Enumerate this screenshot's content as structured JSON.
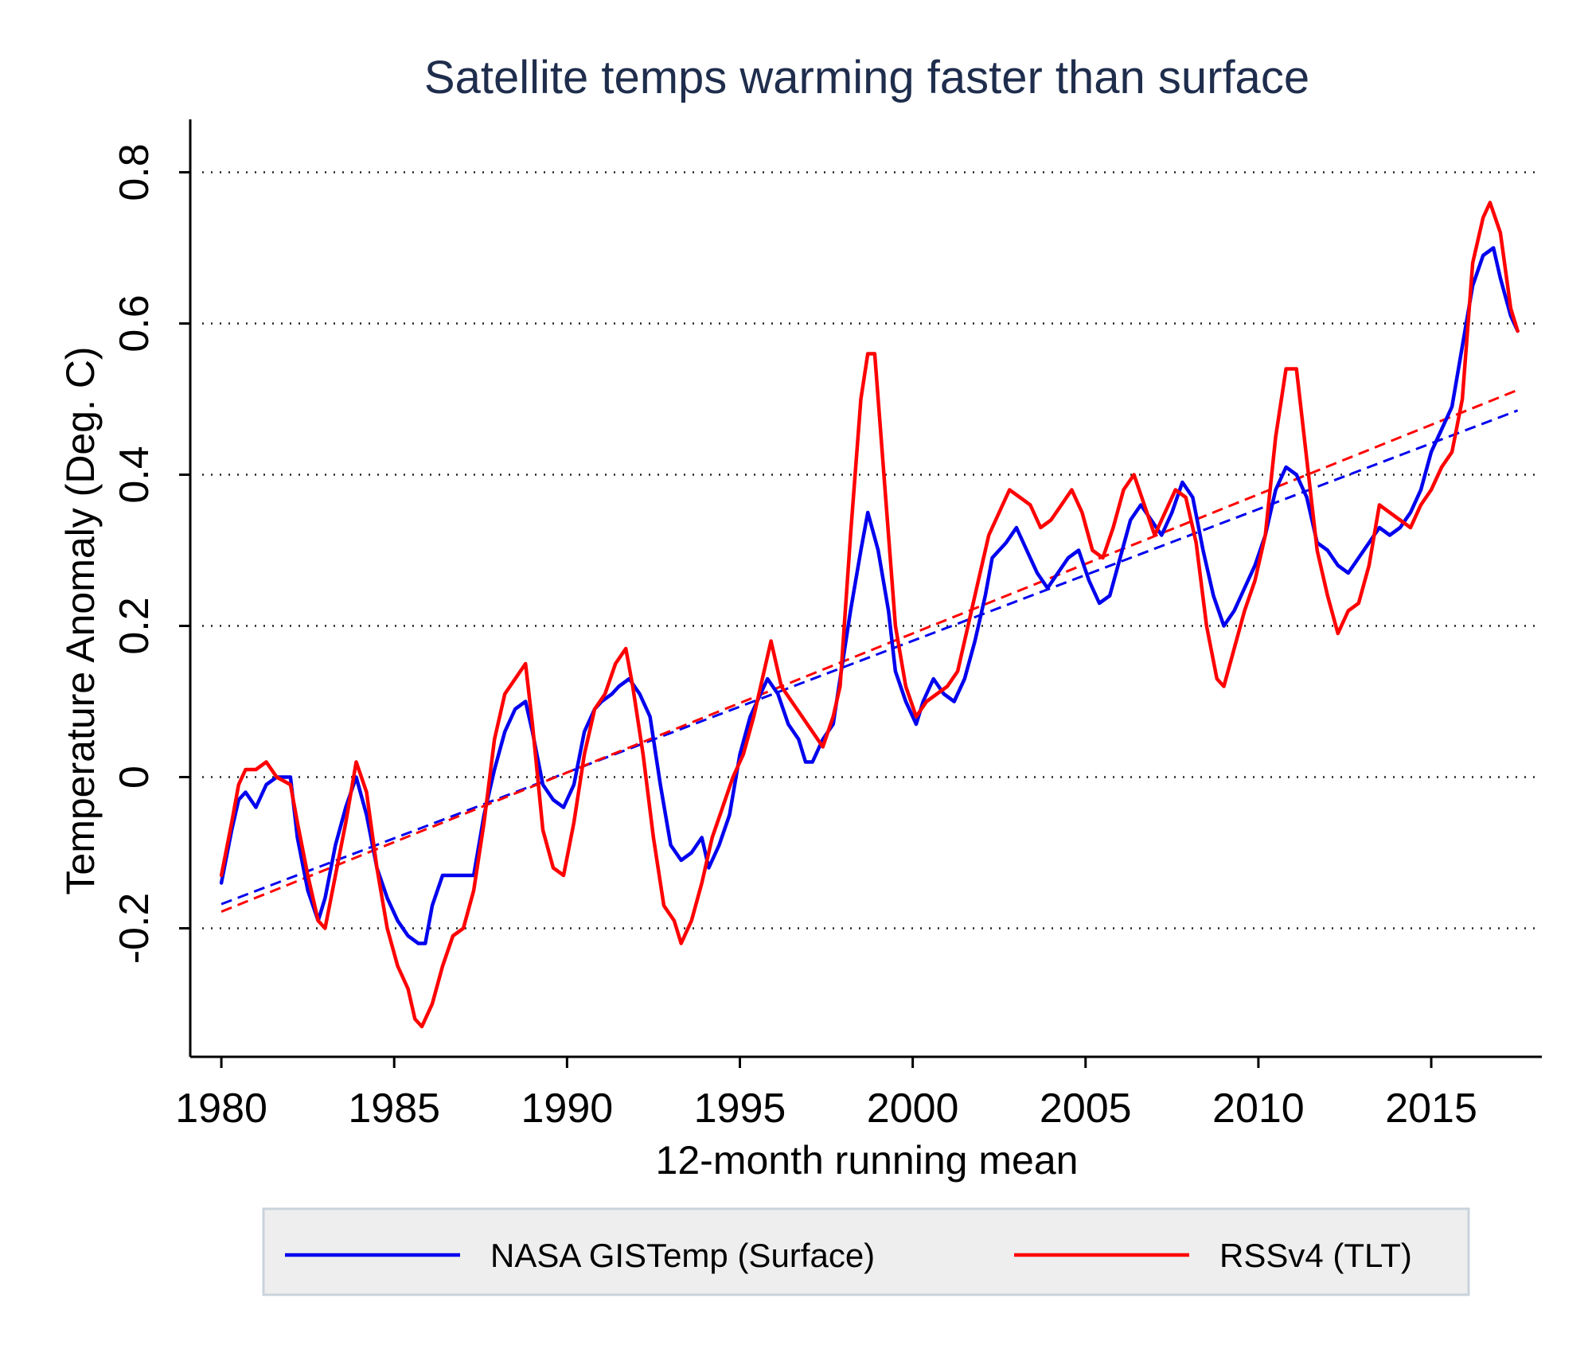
{
  "chart_data": {
    "type": "line",
    "title": "Satellite temps warming faster than surface",
    "xlabel": "12-month running mean",
    "ylabel": "Temperature Anomaly (Deg. C)",
    "xlim": [
      1979.1,
      2018.2
    ],
    "ylim": [
      -0.37,
      0.87
    ],
    "x_ticks": [
      1980,
      1985,
      1990,
      1995,
      2000,
      2005,
      2010,
      2015
    ],
    "x_tick_labels": [
      "1980",
      "1985",
      "1990",
      "1995",
      "2000",
      "2005",
      "2010",
      "2015"
    ],
    "y_ticks": [
      -0.2,
      0,
      0.2,
      0.4,
      0.6,
      0.8
    ],
    "y_tick_labels": [
      "-0.2",
      "0",
      "0.2",
      "0.4",
      "0.6",
      "0.8"
    ],
    "grid": "horizontal dotted",
    "legend_position": "bottom",
    "series": [
      {
        "name": "NASA GISTemp (Surface)",
        "color": "#0000ee",
        "points": [
          [
            1980.0,
            -0.14
          ],
          [
            1980.3,
            -0.07
          ],
          [
            1980.5,
            -0.03
          ],
          [
            1980.7,
            -0.02
          ],
          [
            1981.0,
            -0.04
          ],
          [
            1981.3,
            -0.01
          ],
          [
            1981.6,
            0.0
          ],
          [
            1982.0,
            0.0
          ],
          [
            1982.2,
            -0.08
          ],
          [
            1982.5,
            -0.15
          ],
          [
            1982.8,
            -0.19
          ],
          [
            1983.0,
            -0.16
          ],
          [
            1983.3,
            -0.09
          ],
          [
            1983.6,
            -0.04
          ],
          [
            1983.9,
            0.0
          ],
          [
            1984.2,
            -0.05
          ],
          [
            1984.5,
            -0.12
          ],
          [
            1984.8,
            -0.16
          ],
          [
            1985.1,
            -0.19
          ],
          [
            1985.4,
            -0.21
          ],
          [
            1985.7,
            -0.22
          ],
          [
            1985.9,
            -0.22
          ],
          [
            1986.1,
            -0.17
          ],
          [
            1986.4,
            -0.13
          ],
          [
            1986.7,
            -0.13
          ],
          [
            1987.0,
            -0.13
          ],
          [
            1987.3,
            -0.13
          ],
          [
            1987.6,
            -0.05
          ],
          [
            1987.9,
            0.01
          ],
          [
            1988.2,
            0.06
          ],
          [
            1988.5,
            0.09
          ],
          [
            1988.8,
            0.1
          ],
          [
            1989.0,
            0.06
          ],
          [
            1989.3,
            -0.01
          ],
          [
            1989.6,
            -0.03
          ],
          [
            1989.9,
            -0.04
          ],
          [
            1990.2,
            -0.01
          ],
          [
            1990.5,
            0.06
          ],
          [
            1990.8,
            0.09
          ],
          [
            1991.0,
            0.1
          ],
          [
            1991.3,
            0.11
          ],
          [
            1991.5,
            0.12
          ],
          [
            1991.8,
            0.13
          ],
          [
            1992.1,
            0.11
          ],
          [
            1992.4,
            0.08
          ],
          [
            1992.7,
            -0.01
          ],
          [
            1993.0,
            -0.09
          ],
          [
            1993.3,
            -0.11
          ],
          [
            1993.6,
            -0.1
          ],
          [
            1993.9,
            -0.08
          ],
          [
            1994.1,
            -0.12
          ],
          [
            1994.4,
            -0.09
          ],
          [
            1994.7,
            -0.05
          ],
          [
            1995.0,
            0.03
          ],
          [
            1995.3,
            0.08
          ],
          [
            1995.6,
            0.11
          ],
          [
            1995.8,
            0.13
          ],
          [
            1996.1,
            0.11
          ],
          [
            1996.4,
            0.07
          ],
          [
            1996.7,
            0.05
          ],
          [
            1996.9,
            0.02
          ],
          [
            1997.1,
            0.02
          ],
          [
            1997.4,
            0.05
          ],
          [
            1997.7,
            0.07
          ],
          [
            1997.9,
            0.13
          ],
          [
            1998.2,
            0.22
          ],
          [
            1998.5,
            0.3
          ],
          [
            1998.7,
            0.35
          ],
          [
            1999.0,
            0.3
          ],
          [
            1999.3,
            0.22
          ],
          [
            1999.5,
            0.14
          ],
          [
            1999.8,
            0.1
          ],
          [
            2000.1,
            0.07
          ],
          [
            2000.3,
            0.1
          ],
          [
            2000.6,
            0.13
          ],
          [
            2000.9,
            0.11
          ],
          [
            2001.2,
            0.1
          ],
          [
            2001.5,
            0.13
          ],
          [
            2001.8,
            0.18
          ],
          [
            2002.1,
            0.24
          ],
          [
            2002.3,
            0.29
          ],
          [
            2002.7,
            0.31
          ],
          [
            2003.0,
            0.33
          ],
          [
            2003.3,
            0.3
          ],
          [
            2003.6,
            0.27
          ],
          [
            2003.9,
            0.25
          ],
          [
            2004.2,
            0.27
          ],
          [
            2004.5,
            0.29
          ],
          [
            2004.8,
            0.3
          ],
          [
            2005.1,
            0.26
          ],
          [
            2005.4,
            0.23
          ],
          [
            2005.7,
            0.24
          ],
          [
            2006.0,
            0.29
          ],
          [
            2006.3,
            0.34
          ],
          [
            2006.6,
            0.36
          ],
          [
            2006.9,
            0.34
          ],
          [
            2007.2,
            0.32
          ],
          [
            2007.5,
            0.35
          ],
          [
            2007.8,
            0.39
          ],
          [
            2008.1,
            0.37
          ],
          [
            2008.4,
            0.3
          ],
          [
            2008.7,
            0.24
          ],
          [
            2009.0,
            0.2
          ],
          [
            2009.3,
            0.22
          ],
          [
            2009.6,
            0.25
          ],
          [
            2009.9,
            0.28
          ],
          [
            2010.2,
            0.32
          ],
          [
            2010.5,
            0.38
          ],
          [
            2010.8,
            0.41
          ],
          [
            2011.1,
            0.4
          ],
          [
            2011.4,
            0.37
          ],
          [
            2011.7,
            0.31
          ],
          [
            2012.0,
            0.3
          ],
          [
            2012.3,
            0.28
          ],
          [
            2012.6,
            0.27
          ],
          [
            2012.9,
            0.29
          ],
          [
            2013.2,
            0.31
          ],
          [
            2013.5,
            0.33
          ],
          [
            2013.8,
            0.32
          ],
          [
            2014.1,
            0.33
          ],
          [
            2014.4,
            0.35
          ],
          [
            2014.7,
            0.38
          ],
          [
            2015.0,
            0.43
          ],
          [
            2015.3,
            0.46
          ],
          [
            2015.6,
            0.49
          ],
          [
            2015.9,
            0.57
          ],
          [
            2016.2,
            0.65
          ],
          [
            2016.5,
            0.69
          ],
          [
            2016.8,
            0.7
          ],
          [
            2017.0,
            0.66
          ],
          [
            2017.3,
            0.61
          ],
          [
            2017.5,
            0.59
          ]
        ]
      },
      {
        "name": "RSSv4 (TLT)",
        "color": "#ff0000",
        "points": [
          [
            1980.0,
            -0.13
          ],
          [
            1980.3,
            -0.06
          ],
          [
            1980.5,
            -0.01
          ],
          [
            1980.7,
            0.01
          ],
          [
            1981.0,
            0.01
          ],
          [
            1981.3,
            0.02
          ],
          [
            1981.6,
            0.0
          ],
          [
            1982.0,
            -0.01
          ],
          [
            1982.2,
            -0.06
          ],
          [
            1982.5,
            -0.13
          ],
          [
            1982.8,
            -0.19
          ],
          [
            1983.0,
            -0.2
          ],
          [
            1983.3,
            -0.13
          ],
          [
            1983.6,
            -0.06
          ],
          [
            1983.9,
            0.02
          ],
          [
            1984.2,
            -0.02
          ],
          [
            1984.5,
            -0.12
          ],
          [
            1984.8,
            -0.2
          ],
          [
            1985.1,
            -0.25
          ],
          [
            1985.4,
            -0.28
          ],
          [
            1985.6,
            -0.32
          ],
          [
            1985.8,
            -0.33
          ],
          [
            1986.1,
            -0.3
          ],
          [
            1986.4,
            -0.25
          ],
          [
            1986.7,
            -0.21
          ],
          [
            1987.0,
            -0.2
          ],
          [
            1987.3,
            -0.15
          ],
          [
            1987.6,
            -0.06
          ],
          [
            1987.9,
            0.05
          ],
          [
            1988.2,
            0.11
          ],
          [
            1988.5,
            0.13
          ],
          [
            1988.8,
            0.15
          ],
          [
            1989.0,
            0.07
          ],
          [
            1989.3,
            -0.07
          ],
          [
            1989.6,
            -0.12
          ],
          [
            1989.9,
            -0.13
          ],
          [
            1990.2,
            -0.06
          ],
          [
            1990.5,
            0.03
          ],
          [
            1990.8,
            0.09
          ],
          [
            1991.1,
            0.11
          ],
          [
            1991.4,
            0.15
          ],
          [
            1991.7,
            0.17
          ],
          [
            1991.9,
            0.12
          ],
          [
            1992.2,
            0.03
          ],
          [
            1992.5,
            -0.08
          ],
          [
            1992.8,
            -0.17
          ],
          [
            1993.1,
            -0.19
          ],
          [
            1993.3,
            -0.22
          ],
          [
            1993.6,
            -0.19
          ],
          [
            1993.9,
            -0.14
          ],
          [
            1994.2,
            -0.08
          ],
          [
            1994.5,
            -0.04
          ],
          [
            1994.8,
            0.0
          ],
          [
            1995.1,
            0.03
          ],
          [
            1995.4,
            0.08
          ],
          [
            1995.7,
            0.14
          ],
          [
            1995.9,
            0.18
          ],
          [
            1996.2,
            0.12
          ],
          [
            1996.5,
            0.1
          ],
          [
            1996.8,
            0.08
          ],
          [
            1997.1,
            0.06
          ],
          [
            1997.4,
            0.04
          ],
          [
            1997.7,
            0.08
          ],
          [
            1997.9,
            0.12
          ],
          [
            1998.2,
            0.32
          ],
          [
            1998.5,
            0.5
          ],
          [
            1998.7,
            0.56
          ],
          [
            1998.9,
            0.56
          ],
          [
            1999.2,
            0.38
          ],
          [
            1999.5,
            0.2
          ],
          [
            1999.8,
            0.12
          ],
          [
            2000.1,
            0.08
          ],
          [
            2000.4,
            0.1
          ],
          [
            2000.7,
            0.11
          ],
          [
            2001.0,
            0.12
          ],
          [
            2001.3,
            0.14
          ],
          [
            2001.6,
            0.2
          ],
          [
            2001.9,
            0.26
          ],
          [
            2002.2,
            0.32
          ],
          [
            2002.5,
            0.35
          ],
          [
            2002.8,
            0.38
          ],
          [
            2003.1,
            0.37
          ],
          [
            2003.4,
            0.36
          ],
          [
            2003.7,
            0.33
          ],
          [
            2004.0,
            0.34
          ],
          [
            2004.3,
            0.36
          ],
          [
            2004.6,
            0.38
          ],
          [
            2004.9,
            0.35
          ],
          [
            2005.2,
            0.3
          ],
          [
            2005.5,
            0.29
          ],
          [
            2005.8,
            0.33
          ],
          [
            2006.1,
            0.38
          ],
          [
            2006.4,
            0.4
          ],
          [
            2006.7,
            0.36
          ],
          [
            2007.0,
            0.32
          ],
          [
            2007.3,
            0.35
          ],
          [
            2007.6,
            0.38
          ],
          [
            2007.9,
            0.37
          ],
          [
            2008.2,
            0.31
          ],
          [
            2008.5,
            0.2
          ],
          [
            2008.8,
            0.13
          ],
          [
            2009.0,
            0.12
          ],
          [
            2009.3,
            0.17
          ],
          [
            2009.6,
            0.22
          ],
          [
            2009.9,
            0.26
          ],
          [
            2010.2,
            0.32
          ],
          [
            2010.5,
            0.45
          ],
          [
            2010.8,
            0.54
          ],
          [
            2011.1,
            0.54
          ],
          [
            2011.4,
            0.42
          ],
          [
            2011.7,
            0.3
          ],
          [
            2012.0,
            0.24
          ],
          [
            2012.3,
            0.19
          ],
          [
            2012.6,
            0.22
          ],
          [
            2012.9,
            0.23
          ],
          [
            2013.2,
            0.28
          ],
          [
            2013.5,
            0.36
          ],
          [
            2013.8,
            0.35
          ],
          [
            2014.1,
            0.34
          ],
          [
            2014.4,
            0.33
          ],
          [
            2014.7,
            0.36
          ],
          [
            2015.0,
            0.38
          ],
          [
            2015.3,
            0.41
          ],
          [
            2015.6,
            0.43
          ],
          [
            2015.9,
            0.5
          ],
          [
            2016.2,
            0.68
          ],
          [
            2016.5,
            0.74
          ],
          [
            2016.7,
            0.76
          ],
          [
            2017.0,
            0.72
          ],
          [
            2017.3,
            0.62
          ],
          [
            2017.5,
            0.59
          ]
        ]
      }
    ],
    "trendlines": [
      {
        "series": "NASA GISTemp (Surface)",
        "color": "#0000ee",
        "style": "dashed",
        "x": [
          1980.0,
          2017.5
        ],
        "y": [
          -0.168,
          0.485
        ]
      },
      {
        "series": "RSSv4 (TLT)",
        "color": "#ff0000",
        "style": "dashed",
        "x": [
          1980.0,
          2017.5
        ],
        "y": [
          -0.178,
          0.512
        ]
      }
    ]
  }
}
